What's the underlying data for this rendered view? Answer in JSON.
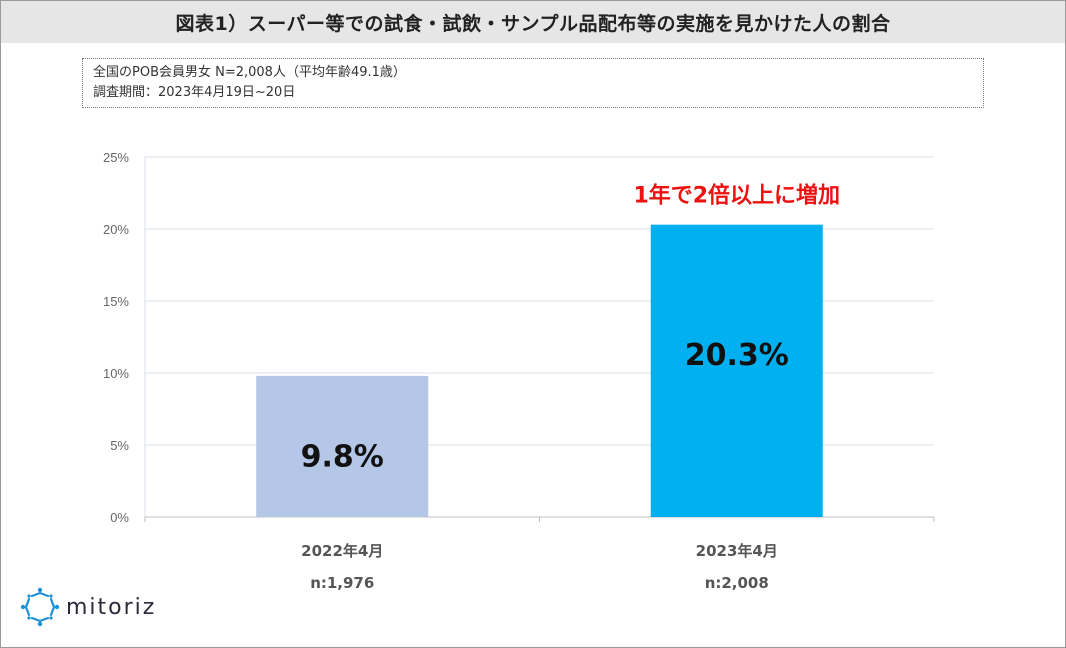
{
  "header": {
    "title": "図表1）スーパー等での試食・試飲・サンプル品配布等の実施を見かけた人の割合"
  },
  "note": {
    "line1": "全国のPOB会員男女 N=2,008人（平均年齢49.1歳）",
    "line2": "調査期間：2023年4月19日~20日"
  },
  "chart_data": {
    "type": "bar",
    "categories": [
      "2022年4月",
      "2023年4月"
    ],
    "sample_sizes": [
      "n:1,976",
      "n:2,008"
    ],
    "values": [
      9.8,
      20.3
    ],
    "value_labels": [
      "9.8%",
      "20.3%"
    ],
    "bar_colors": [
      "#b4c7e7",
      "#00b0f0"
    ],
    "ylim": [
      0,
      25
    ],
    "yticks": [
      0,
      5,
      10,
      15,
      20,
      25
    ],
    "ytick_labels": [
      "0%",
      "5%",
      "10%",
      "15%",
      "20%",
      "25%"
    ],
    "grid": true,
    "annotation": "1年で2倍以上に増加",
    "annotation_color": "#ee1111"
  },
  "brand": {
    "logo_text": "mitoriz",
    "logo_icon": "sparkle-ring-icon",
    "accent": "#1e90d6"
  }
}
